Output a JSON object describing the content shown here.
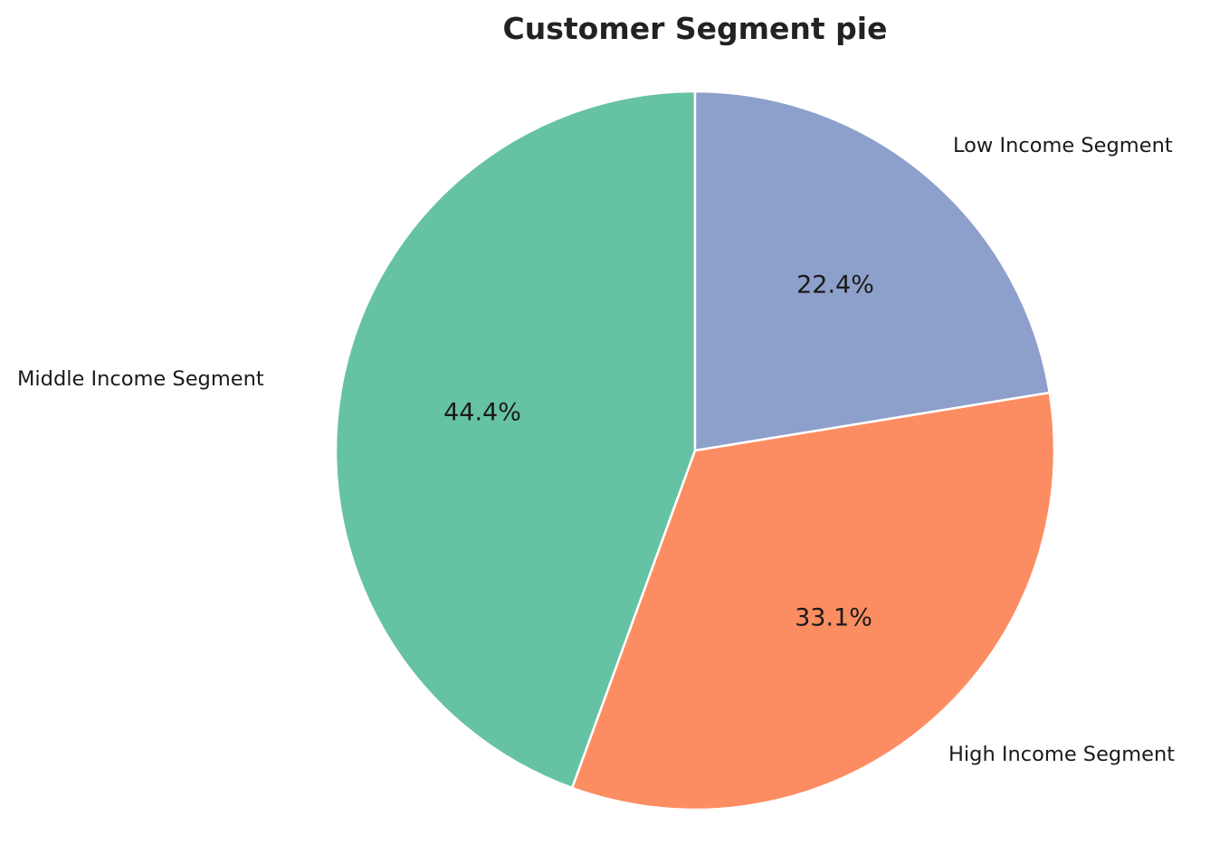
{
  "chart_data": {
    "type": "pie",
    "title": "Customer Segment pie",
    "categories": [
      "Middle Income Segment",
      "High Income Segment",
      "Low Income Segment"
    ],
    "values": [
      44.4,
      33.1,
      22.4
    ],
    "labels_pct": [
      "44.4%",
      "33.1%",
      "22.4%"
    ],
    "colors": [
      "#66c2a5",
      "#fc8d62",
      "#8da0cb"
    ],
    "start_angle": 90,
    "direction": "counterclockwise",
    "legend": "none"
  }
}
